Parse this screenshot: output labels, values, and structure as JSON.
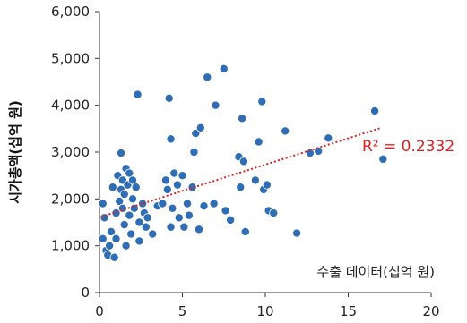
{
  "chart_data": {
    "type": "scatter",
    "title": "",
    "xlabel": "수출 데이터(십억 원)",
    "ylabel": "시가총액(십억 원)",
    "xlim": [
      0,
      20
    ],
    "ylim": [
      0,
      6000
    ],
    "x_ticks": [
      "0",
      "5",
      "10",
      "15",
      "20"
    ],
    "y_ticks": [
      "0",
      "1,000",
      "2,000",
      "3,000",
      "4,000",
      "5,000",
      "6,000"
    ],
    "grid": false,
    "legend": "none",
    "marker_color": "#2F6DB5",
    "trendline": {
      "type": "linear",
      "x": [
        0.1,
        17.0
      ],
      "y": [
        1620,
        3520
      ],
      "color": "#E02020",
      "style": "dotted",
      "r2_label": "R² = 0.2332"
    },
    "points": [
      [
        0.2,
        1900
      ],
      [
        0.2,
        1150
      ],
      [
        0.3,
        1600
      ],
      [
        0.4,
        900
      ],
      [
        0.5,
        800
      ],
      [
        0.6,
        1000
      ],
      [
        0.7,
        1300
      ],
      [
        0.8,
        2250
      ],
      [
        0.9,
        750
      ],
      [
        1.0,
        1150
      ],
      [
        1.0,
        1700
      ],
      [
        1.1,
        2500
      ],
      [
        1.2,
        1950
      ],
      [
        1.3,
        2200
      ],
      [
        1.3,
        2980
      ],
      [
        1.4,
        1800
      ],
      [
        1.4,
        2400
      ],
      [
        1.5,
        1450
      ],
      [
        1.5,
        2100
      ],
      [
        1.6,
        1000
      ],
      [
        1.6,
        2650
      ],
      [
        1.7,
        2300
      ],
      [
        1.8,
        1650
      ],
      [
        1.8,
        2550
      ],
      [
        1.9,
        1250
      ],
      [
        2.0,
        2000
      ],
      [
        2.0,
        2400
      ],
      [
        2.1,
        1800
      ],
      [
        2.2,
        2250
      ],
      [
        2.3,
        4230
      ],
      [
        2.4,
        1100
      ],
      [
        2.4,
        1500
      ],
      [
        2.6,
        1900
      ],
      [
        2.7,
        1700
      ],
      [
        2.8,
        1400
      ],
      [
        2.9,
        1600
      ],
      [
        3.2,
        1250
      ],
      [
        3.5,
        1850
      ],
      [
        3.8,
        1900
      ],
      [
        4.0,
        2400
      ],
      [
        4.1,
        2200
      ],
      [
        4.2,
        4150
      ],
      [
        4.3,
        3280
      ],
      [
        4.3,
        1400
      ],
      [
        4.4,
        1800
      ],
      [
        4.5,
        2550
      ],
      [
        4.7,
        2300
      ],
      [
        4.8,
        1600
      ],
      [
        5.0,
        2500
      ],
      [
        5.1,
        1400
      ],
      [
        5.3,
        1900
      ],
      [
        5.4,
        1650
      ],
      [
        5.6,
        2250
      ],
      [
        5.7,
        3000
      ],
      [
        5.8,
        3400
      ],
      [
        6.0,
        1350
      ],
      [
        6.1,
        3520
      ],
      [
        6.3,
        1850
      ],
      [
        6.5,
        4600
      ],
      [
        6.9,
        1900
      ],
      [
        7.0,
        4000
      ],
      [
        7.5,
        4780
      ],
      [
        7.6,
        1750
      ],
      [
        7.9,
        1550
      ],
      [
        8.4,
        2900
      ],
      [
        8.5,
        2250
      ],
      [
        8.6,
        3720
      ],
      [
        8.7,
        2800
      ],
      [
        8.8,
        1300
      ],
      [
        9.4,
        2400
      ],
      [
        9.6,
        3220
      ],
      [
        9.8,
        4080
      ],
      [
        9.9,
        2200
      ],
      [
        10.1,
        2300
      ],
      [
        10.2,
        1750
      ],
      [
        10.5,
        1700
      ],
      [
        11.2,
        3450
      ],
      [
        11.9,
        1270
      ],
      [
        12.7,
        2980
      ],
      [
        13.2,
        3020
      ],
      [
        13.8,
        3300
      ],
      [
        16.6,
        3880
      ],
      [
        17.1,
        2850
      ]
    ]
  }
}
